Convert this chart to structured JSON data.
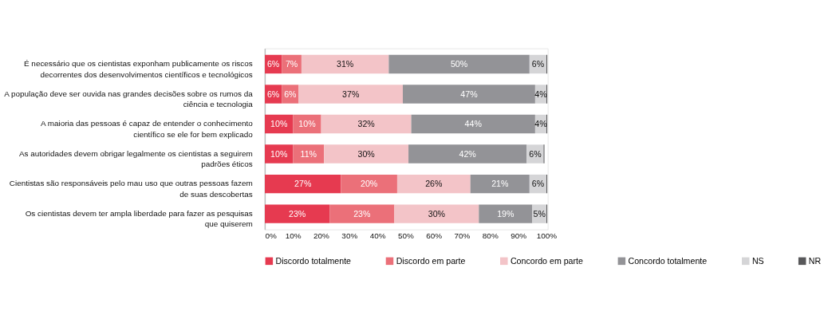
{
  "chart_data": {
    "type": "bar",
    "orientation": "horizontal",
    "stacked": true,
    "categories": [
      "É necessário que os cientistas exponham publicamente os riscos decorrentes dos desenvolvimentos científicos e tecnológicos",
      "A população deve ser ouvida nas grandes decisões sobre os rumos da ciência e tecnologia",
      "A maioria das pessoas é capaz de entender o conhecimento científico se ele for  bem explicado",
      "As autoridades devem obrigar legalmente os cientistas a seguirem padrões éticos",
      "Cientistas são responsáveis pelo mau uso que outras pessoas fazem de suas descobertas",
      "Os cientistas devem ter ampla liberdade para fazer as pesquisas que quiserem"
    ],
    "series": [
      {
        "name": "Discordo totalmente",
        "color": "#e63a50",
        "values": [
          6,
          6,
          10,
          10,
          27,
          23
        ],
        "value_labels": [
          "6%",
          "6%",
          "10%",
          "10%",
          "27%",
          "23%"
        ]
      },
      {
        "name": "Discordo em parte",
        "color": "#eb7079",
        "values": [
          7,
          6,
          10,
          11,
          20,
          23
        ],
        "value_labels": [
          "7%",
          "6%",
          "10%",
          "11%",
          "20%",
          "23%"
        ]
      },
      {
        "name": "Concordo em parte",
        "color": "#f3c4c8",
        "values": [
          31,
          37,
          32,
          30,
          26,
          30
        ],
        "value_labels": [
          "31%",
          "37%",
          "32%",
          "30%",
          "26%",
          "30%"
        ]
      },
      {
        "name": "Concordo totalmente",
        "color": "#939397",
        "values": [
          50,
          47,
          44,
          42,
          21,
          19
        ],
        "value_labels": [
          "50%",
          "47%",
          "44%",
          "42%",
          "21%",
          "19%"
        ]
      },
      {
        "name": "NS",
        "color": "#d5d5d7",
        "values": [
          6,
          4,
          4,
          6,
          6,
          5
        ],
        "value_labels": [
          "6%",
          "4%",
          "4%",
          "6%",
          "6%",
          "5%"
        ]
      },
      {
        "name": "NR",
        "color": "#58585a",
        "values": [
          0.3,
          0.3,
          0.3,
          0.3,
          0.3,
          0.3
        ],
        "value_labels": [
          null,
          null,
          null,
          null,
          null,
          null
        ]
      }
    ],
    "xlim": [
      0,
      100.5
    ],
    "xticks": [
      {
        "value": 0,
        "label": "0%"
      },
      {
        "value": 10,
        "label": "10%"
      },
      {
        "value": 20,
        "label": "20%"
      },
      {
        "value": 30,
        "label": "30%"
      },
      {
        "value": 40,
        "label": "40%"
      },
      {
        "value": 50,
        "label": "50%"
      },
      {
        "value": 60,
        "label": "60%"
      },
      {
        "value": 70,
        "label": "70%"
      },
      {
        "value": 80,
        "label": "80%"
      },
      {
        "value": 90,
        "label": "90%"
      },
      {
        "value": 100,
        "label": "100%"
      }
    ],
    "grid": false,
    "legend": "bottom"
  }
}
